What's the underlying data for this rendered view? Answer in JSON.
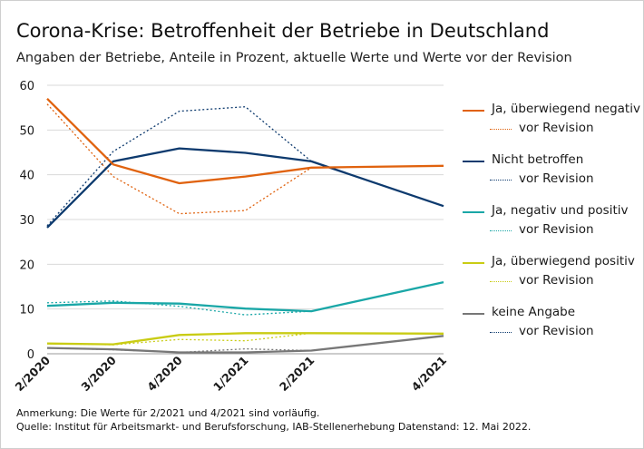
{
  "title": "Corona-Krise: Betroffenheit der Betriebe in Deutschland",
  "subtitle": "Angaben der Betriebe, Anteile in Prozent, aktuelle Werte und Werte vor der Revision",
  "notes": {
    "line1": "Anmerkung: Die Werte für 2/2021 und 4/2021 sind vorläufig.",
    "line2": "Quelle: Institut für Arbeitsmarkt- und Berufsforschung, IAB-Stellenerhebung Datenstand: 12. Mai 2022."
  },
  "chart_data": {
    "type": "line",
    "title": "Corona-Krise: Betroffenheit der Betriebe in Deutschland",
    "xlabel": "",
    "ylabel": "",
    "ylim": [
      0,
      60
    ],
    "yticks": [
      0,
      10,
      20,
      30,
      40,
      50,
      60
    ],
    "x_positions": [
      0,
      1,
      2,
      3,
      4,
      6
    ],
    "categories": [
      "2/2020",
      "3/2020",
      "4/2020",
      "1/2021",
      "2/2021",
      "4/2021"
    ],
    "series": [
      {
        "name": "Ja, überwiegend negativ",
        "revision_label": "vor Revision",
        "color": "#e0620e",
        "values": [
          57.0,
          42.3,
          38.1,
          39.6,
          41.6,
          42.0
        ],
        "revision": [
          55.8,
          39.6,
          31.3,
          32.0,
          41.6,
          null
        ]
      },
      {
        "name": "Nicht betroffen",
        "revision_label": "vor Revision",
        "color": "#0d3a6e",
        "values": [
          28.2,
          43.0,
          45.9,
          44.9,
          43.0,
          33.0
        ],
        "revision": [
          28.6,
          45.2,
          54.2,
          55.2,
          43.0,
          null
        ]
      },
      {
        "name": "Ja, negativ und positiv",
        "revision_label": "vor Revision",
        "color": "#1aa7a7",
        "values": [
          10.7,
          11.4,
          11.2,
          10.1,
          9.5,
          16.0
        ],
        "revision": [
          11.4,
          11.8,
          10.6,
          8.7,
          9.5,
          null
        ]
      },
      {
        "name": "Ja, überwiegend positiv",
        "revision_label": "vor Revision",
        "color": "#c9cc14",
        "values": [
          2.3,
          2.1,
          4.2,
          4.6,
          4.6,
          4.5
        ],
        "revision": [
          2.3,
          2.0,
          3.2,
          2.9,
          4.6,
          null
        ]
      },
      {
        "name": "keine Angabe",
        "revision_label": "vor Revision",
        "color": "#777777",
        "values": [
          1.3,
          1.0,
          0.3,
          0.3,
          0.7,
          4.0
        ],
        "revision": [
          1.3,
          0.9,
          0.3,
          1.1,
          0.7,
          null
        ]
      }
    ]
  }
}
